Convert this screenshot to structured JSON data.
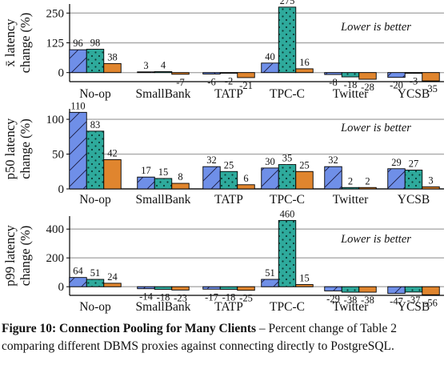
{
  "colors": {
    "series_a": "#6f8fe8",
    "series_b": "#2eaa9c",
    "series_c": "#e0852e",
    "gridline": "#aaaaaa",
    "axis": "#000000"
  },
  "chart_data": [
    {
      "type": "bar",
      "ylabel_line1": "x̄ latency",
      "ylabel_line2": "change (%)",
      "annotation": "Lower is better",
      "categories": [
        "No-op",
        "SmallBank",
        "TATP",
        "TPC-C",
        "Twitter",
        "YCSB"
      ],
      "series": [
        {
          "values": [
            96,
            3,
            -6,
            40,
            -8,
            -20
          ]
        },
        {
          "values": [
            98,
            4,
            -2,
            275,
            -18,
            -3
          ]
        },
        {
          "values": [
            38,
            -7,
            -21,
            16,
            -28,
            -35
          ]
        }
      ],
      "yticks": [
        0,
        125,
        250
      ],
      "ylim": [
        -38,
        288
      ],
      "grid": true
    },
    {
      "type": "bar",
      "ylabel_line1": "p50 latency",
      "ylabel_line2": "change (%)",
      "annotation": "Lower is better",
      "categories": [
        "No-op",
        "SmallBank",
        "TATP",
        "TPC-C",
        "Twitter",
        "YCSB"
      ],
      "series": [
        {
          "values": [
            110,
            17,
            32,
            30,
            32,
            29
          ]
        },
        {
          "values": [
            83,
            15,
            25,
            35,
            2,
            27
          ]
        },
        {
          "values": [
            42,
            8,
            6,
            25,
            2,
            3
          ]
        }
      ],
      "yticks": [
        0,
        50,
        100
      ],
      "ylim": [
        0,
        115
      ],
      "grid": true
    },
    {
      "type": "bar",
      "ylabel_line1": "p99 latency",
      "ylabel_line2": "change (%)",
      "annotation": "Lower is better",
      "categories": [
        "No-op",
        "SmallBank",
        "TATP",
        "TPC-C",
        "Twitter",
        "YCSB"
      ],
      "series": [
        {
          "values": [
            64,
            -14,
            -17,
            51,
            -29,
            -47
          ]
        },
        {
          "values": [
            51,
            -18,
            -18,
            460,
            -38,
            -37
          ]
        },
        {
          "values": [
            24,
            -23,
            -25,
            15,
            -38,
            -56
          ]
        }
      ],
      "yticks": [
        0,
        200,
        400
      ],
      "ylim": [
        -60,
        490
      ],
      "grid": true
    }
  ],
  "caption": {
    "label": "Figure 10: Connection Pooling for Many Clients",
    "text": " – Percent change of Table 2 comparing different DBMS proxies against connecting directly to PostgreSQL."
  }
}
